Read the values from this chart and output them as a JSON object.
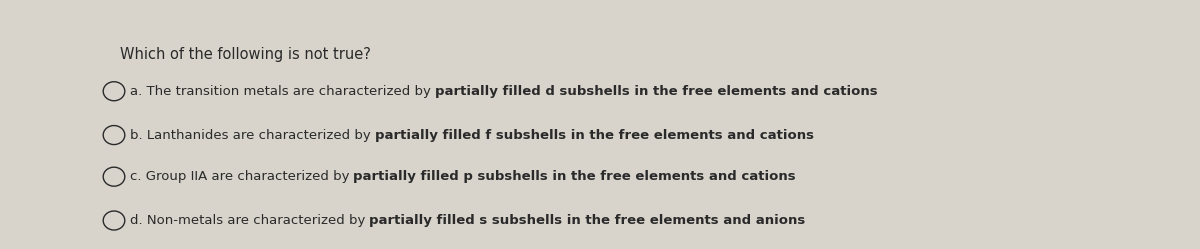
{
  "title": "Which of the following is not true?",
  "options_normal": [
    "a. The transition metals are characterized by ",
    "b. Lanthanides are characterized by ",
    "c. Group IIA are characterized by ",
    "d. Non-metals are characterized by "
  ],
  "options_bold": [
    "partially filled d subshells in the free elements and cations",
    "partially filled f subshells in the free elements and cations",
    "partially filled p subshells in the free elements and cations",
    "partially filled s subshells in the free elements and anions"
  ],
  "bg_color_top": "#b0b8c4",
  "bg_color_main": "#d8d4cc",
  "text_color": "#2a2a2a",
  "title_fontsize": 10.5,
  "option_fontsize": 9.5,
  "fig_width": 12.0,
  "fig_height": 2.49,
  "dpi": 100
}
